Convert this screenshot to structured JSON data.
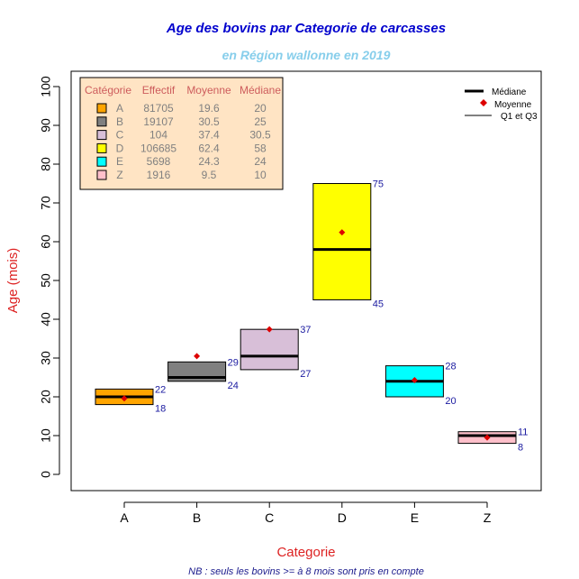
{
  "chart_data": {
    "type": "box",
    "title": "Age des bovins par Categorie de carcasses",
    "subtitle": "en Région wallonne en 2019",
    "xlabel": "Categorie",
    "ylabel": "Age (mois)",
    "note": "NB : seuls les bovins >= à 8 mois sont pris en compte",
    "ylim": [
      0,
      100
    ],
    "yticks": [
      0,
      10,
      20,
      30,
      40,
      50,
      60,
      70,
      80,
      90,
      100
    ],
    "categories": [
      "A",
      "B",
      "C",
      "D",
      "E",
      "Z"
    ],
    "boxes": [
      {
        "category": "A",
        "q1": 18,
        "q3": 22,
        "median": 20,
        "mean": 19.6,
        "q1_label": "18",
        "q3_label": "22",
        "color": "#ffa500"
      },
      {
        "category": "B",
        "q1": 24,
        "q3": 29,
        "median": 25,
        "mean": 30.5,
        "q1_label": "24",
        "q3_label": "29",
        "color": "#808080"
      },
      {
        "category": "C",
        "q1": 27,
        "q3": 37.4,
        "median": 30.5,
        "mean": 37.4,
        "q1_label": "27",
        "q3_label": "37",
        "color": "#d8bfd8"
      },
      {
        "category": "D",
        "q1": 45,
        "q3": 75,
        "median": 58,
        "mean": 62.4,
        "q1_label": "45",
        "q3_label": "75",
        "color": "#ffff00"
      },
      {
        "category": "E",
        "q1": 20,
        "q3": 28,
        "median": 24,
        "mean": 24.3,
        "q1_label": "20",
        "q3_label": "28",
        "color": "#00ffff"
      },
      {
        "category": "Z",
        "q1": 8,
        "q3": 11,
        "median": 10,
        "mean": 9.5,
        "q1_label": "8",
        "q3_label": "11",
        "color": "#ffc0cb"
      }
    ],
    "table": {
      "headers": [
        "Catégorie",
        "Effectif",
        "Moyenne",
        "Médiane"
      ],
      "rows": [
        {
          "cat": "A",
          "effectif": "81705",
          "moyenne": "19.6",
          "mediane": "20"
        },
        {
          "cat": "B",
          "effectif": "19107",
          "moyenne": "30.5",
          "mediane": "25"
        },
        {
          "cat": "C",
          "effectif": "104",
          "moyenne": "37.4",
          "mediane": "30.5"
        },
        {
          "cat": "D",
          "effectif": "106685",
          "moyenne": "62.4",
          "mediane": "58"
        },
        {
          "cat": "E",
          "effectif": "5698",
          "moyenne": "24.3",
          "mediane": "24"
        },
        {
          "cat": "Z",
          "effectif": "1916",
          "moyenne": "9.5",
          "mediane": "10"
        }
      ],
      "background": "#ffe4c4"
    },
    "legend": {
      "position": "top-right",
      "items": [
        "Médiane",
        "Moyenne",
        "Q1 et Q3"
      ]
    },
    "colors": {
      "median": "#000000",
      "mean": "#dd0000",
      "quartile_label": "#1a1aa0"
    }
  }
}
